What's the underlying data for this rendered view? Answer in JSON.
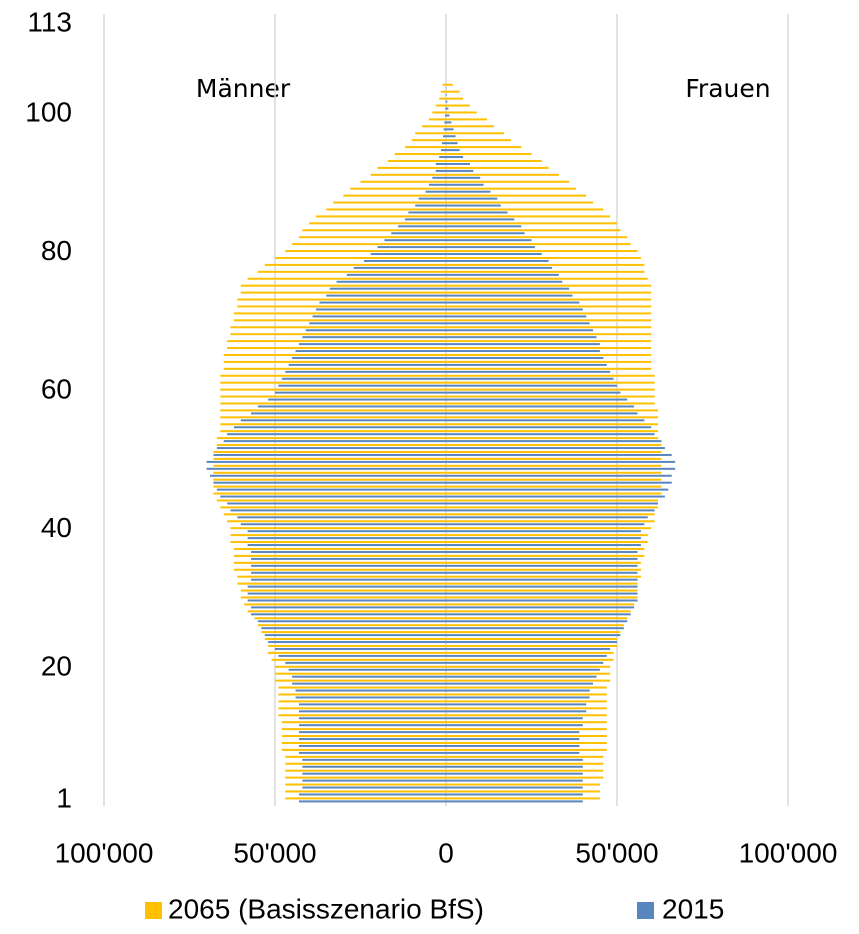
{
  "chart_data": {
    "type": "pyramid",
    "annotations": [
      "Männer",
      "Frauen"
    ],
    "x": [
      1,
      2,
      3,
      4,
      5,
      6,
      7,
      8,
      9,
      10,
      11,
      12,
      13,
      14,
      15,
      16,
      17,
      18,
      19,
      20,
      21,
      22,
      23,
      24,
      25,
      26,
      27,
      28,
      29,
      30,
      31,
      32,
      33,
      34,
      35,
      36,
      37,
      38,
      39,
      40,
      41,
      42,
      43,
      44,
      45,
      46,
      47,
      48,
      49,
      50,
      51,
      52,
      53,
      54,
      55,
      56,
      57,
      58,
      59,
      60,
      61,
      62,
      63,
      64,
      65,
      66,
      67,
      68,
      69,
      70,
      71,
      72,
      73,
      74,
      75,
      76,
      77,
      78,
      79,
      80,
      81,
      82,
      83,
      84,
      85,
      86,
      87,
      88,
      89,
      90,
      91,
      92,
      93,
      94,
      95,
      96,
      97,
      98,
      99,
      100,
      101,
      102,
      103,
      104
    ],
    "series": [
      {
        "name": "2065 (Basisszenario BfS)",
        "color": "#ffc000",
        "male": [
          -47000,
          -47000,
          -47000,
          -47000,
          -47000,
          -47000,
          -47000,
          -48000,
          -48000,
          -48000,
          -48000,
          -48000,
          -49000,
          -49000,
          -49000,
          -49000,
          -49000,
          -50000,
          -50000,
          -50000,
          -51000,
          -52000,
          -52000,
          -53000,
          -54000,
          -55000,
          -56000,
          -58000,
          -59000,
          -60000,
          -60000,
          -61000,
          -61000,
          -62000,
          -62000,
          -62000,
          -62000,
          -63000,
          -63000,
          -63000,
          -64000,
          -65000,
          -66000,
          -67000,
          -68000,
          -68000,
          -68000,
          -68000,
          -68000,
          -68000,
          -68000,
          -67000,
          -67000,
          -66000,
          -66000,
          -66000,
          -66000,
          -66000,
          -66000,
          -66000,
          -66000,
          -66000,
          -65000,
          -65000,
          -65000,
          -64000,
          -64000,
          -63000,
          -63000,
          -62000,
          -62000,
          -61000,
          -61000,
          -60000,
          -60000,
          -58000,
          -55000,
          -53000,
          -50000,
          -47000,
          -45000,
          -43000,
          -42000,
          -40000,
          -38000,
          -35000,
          -33000,
          -30000,
          -28000,
          -25000,
          -22000,
          -20000,
          -17000,
          -15000,
          -12000,
          -10000,
          -9000,
          -7000,
          -5000,
          -4000,
          -3000,
          -2000,
          -1500,
          -1000
        ],
        "female": [
          45000,
          45000,
          45000,
          46000,
          46000,
          46000,
          46000,
          47000,
          47000,
          47000,
          47000,
          47000,
          47000,
          47000,
          47000,
          47000,
          47000,
          48000,
          48000,
          48000,
          49000,
          49000,
          50000,
          50000,
          51000,
          52000,
          53000,
          54000,
          55000,
          56000,
          56000,
          56000,
          57000,
          57000,
          57000,
          58000,
          58000,
          59000,
          59000,
          60000,
          61000,
          61000,
          62000,
          62000,
          63000,
          63000,
          63000,
          63000,
          63000,
          63000,
          63000,
          63000,
          62000,
          62000,
          62000,
          62000,
          62000,
          61000,
          61000,
          61000,
          61000,
          61000,
          60000,
          60000,
          60000,
          60000,
          60000,
          60000,
          60000,
          60000,
          60000,
          60000,
          60000,
          60000,
          60000,
          59000,
          58000,
          58000,
          57000,
          56000,
          54000,
          53000,
          51000,
          50000,
          48000,
          46000,
          43000,
          41000,
          38000,
          36000,
          33000,
          30000,
          28000,
          25000,
          22000,
          19000,
          17000,
          14000,
          12000,
          9000,
          7000,
          5000,
          4000,
          2000
        ]
      },
      {
        "name": "2015",
        "color": "#5a86c0",
        "male": [
          -43000,
          -43000,
          -42000,
          -42000,
          -42000,
          -42000,
          -42000,
          -43000,
          -43000,
          -43000,
          -43000,
          -43000,
          -43000,
          -43000,
          -43000,
          -44000,
          -44000,
          -45000,
          -45000,
          -46000,
          -47000,
          -49000,
          -50000,
          -52000,
          -53000,
          -54000,
          -55000,
          -57000,
          -57000,
          -58000,
          -58000,
          -58000,
          -57000,
          -57000,
          -57000,
          -57000,
          -57000,
          -58000,
          -58000,
          -58000,
          -60000,
          -61000,
          -63000,
          -64000,
          -66000,
          -67000,
          -68000,
          -69000,
          -70000,
          -70000,
          -68000,
          -67000,
          -65000,
          -64000,
          -62000,
          -60000,
          -57000,
          -55000,
          -52000,
          -50000,
          -49000,
          -48000,
          -47000,
          -46000,
          -45000,
          -44000,
          -43000,
          -42000,
          -41000,
          -40000,
          -39000,
          -38000,
          -37000,
          -35000,
          -34000,
          -32000,
          -29000,
          -27000,
          -24000,
          -22000,
          -20000,
          -18000,
          -16000,
          -14000,
          -12000,
          -11000,
          -9000,
          -8000,
          -6000,
          -5000,
          -4000,
          -3000,
          -3000,
          -2000,
          -1500,
          -1200,
          -900,
          -700,
          -500,
          -300,
          -200,
          -100,
          -100,
          0
        ],
        "female": [
          40000,
          40000,
          40000,
          40000,
          40000,
          40000,
          40000,
          39000,
          39000,
          39000,
          39000,
          40000,
          40000,
          41000,
          41000,
          42000,
          42000,
          43000,
          44000,
          45000,
          46000,
          47000,
          48000,
          50000,
          51000,
          52000,
          53000,
          54000,
          55000,
          56000,
          56000,
          56000,
          56000,
          56000,
          56000,
          56000,
          56000,
          57000,
          57000,
          57000,
          58000,
          59000,
          61000,
          62000,
          64000,
          65000,
          66000,
          66000,
          67000,
          67000,
          66000,
          64000,
          63000,
          61000,
          60000,
          58000,
          56000,
          55000,
          53000,
          51000,
          50000,
          49000,
          48000,
          47000,
          46000,
          45000,
          45000,
          44000,
          43000,
          42000,
          41000,
          40000,
          39000,
          37000,
          36000,
          34000,
          33000,
          31000,
          30000,
          28000,
          26000,
          25000,
          23000,
          22000,
          20000,
          18000,
          16000,
          15000,
          13000,
          11000,
          10000,
          8000,
          7000,
          5000,
          4000,
          3400,
          2800,
          2200,
          1600,
          1000,
          700,
          400,
          200,
          100
        ]
      }
    ],
    "xlim": [
      -100000,
      100000
    ],
    "xticks": [
      {
        "value": -100000,
        "label": "100'000"
      },
      {
        "value": -50000,
        "label": "50'000"
      },
      0,
      {
        "value": 50000,
        "label": "50'000"
      },
      {
        "value": 100000,
        "label": "100'000"
      }
    ],
    "ylim": [
      1,
      113
    ],
    "yticks": [
      1,
      20,
      40,
      60,
      80,
      100,
      113
    ],
    "grid": true
  }
}
